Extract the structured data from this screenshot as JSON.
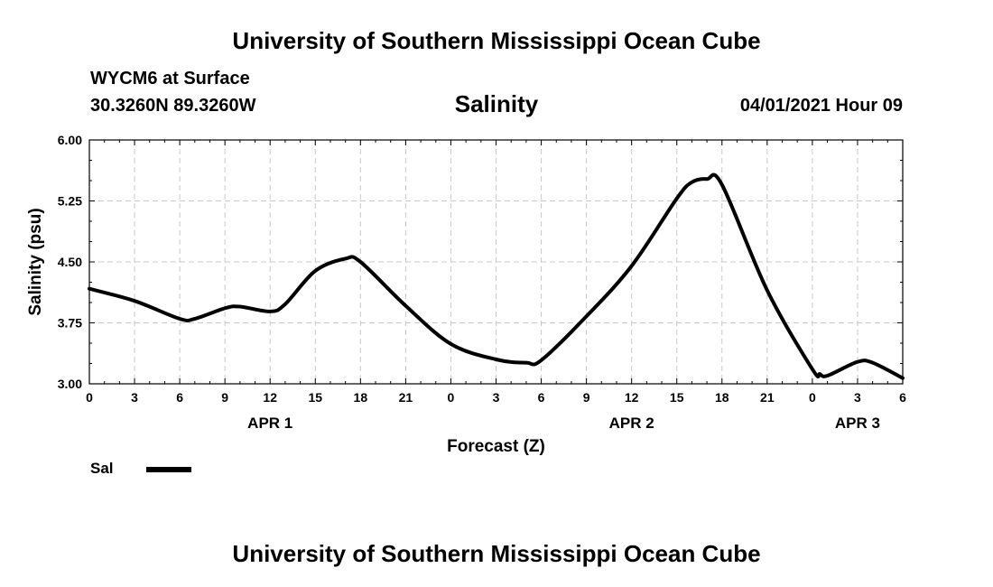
{
  "header": {
    "title": "University of Southern Mississippi Ocean Cube",
    "station": "WYCM6 at Surface",
    "coords": "30.3260N  89.3260W",
    "parameter": "Salinity",
    "datetime": "04/01/2021 Hour 09"
  },
  "footer": {
    "title": "University of Southern Mississippi Ocean Cube"
  },
  "legend": {
    "label": "Sal"
  },
  "chart_data": {
    "type": "line",
    "title": "Salinity",
    "xlabel": "Forecast (Z)",
    "ylabel": "Salinity (psu)",
    "xlim": [
      0,
      54
    ],
    "ylim": [
      3.0,
      6.0
    ],
    "grid": true,
    "yticks": [
      "3.00",
      "3.75",
      "4.50",
      "5.25",
      "6.00"
    ],
    "ytick_values": [
      3.0,
      3.75,
      4.5,
      5.25,
      6.0
    ],
    "xticks": [
      "0",
      "3",
      "6",
      "9",
      "12",
      "15",
      "18",
      "21",
      "0",
      "3",
      "6",
      "9",
      "12",
      "15",
      "18",
      "21",
      "0",
      "3",
      "6"
    ],
    "day_labels": [
      {
        "text": "APR 1",
        "hour": 12
      },
      {
        "text": "APR 2",
        "hour": 36
      },
      {
        "text": "APR 3",
        "hour": 51
      }
    ],
    "series": [
      {
        "name": "Sal",
        "color": "#000000",
        "x": [
          0,
          3,
          6,
          7,
          9,
          10,
          12,
          13,
          15,
          17,
          18,
          21,
          24,
          27,
          29,
          30,
          33,
          36,
          39,
          40,
          41,
          42,
          45,
          48,
          48.5,
          49,
          51,
          52,
          54
        ],
        "y": [
          4.17,
          4.02,
          3.8,
          3.8,
          3.93,
          3.95,
          3.89,
          3.98,
          4.39,
          4.54,
          4.5,
          3.96,
          3.49,
          3.3,
          3.26,
          3.29,
          3.83,
          4.45,
          5.28,
          5.48,
          5.52,
          5.45,
          4.15,
          3.18,
          3.12,
          3.1,
          3.27,
          3.26,
          3.07
        ]
      }
    ]
  }
}
